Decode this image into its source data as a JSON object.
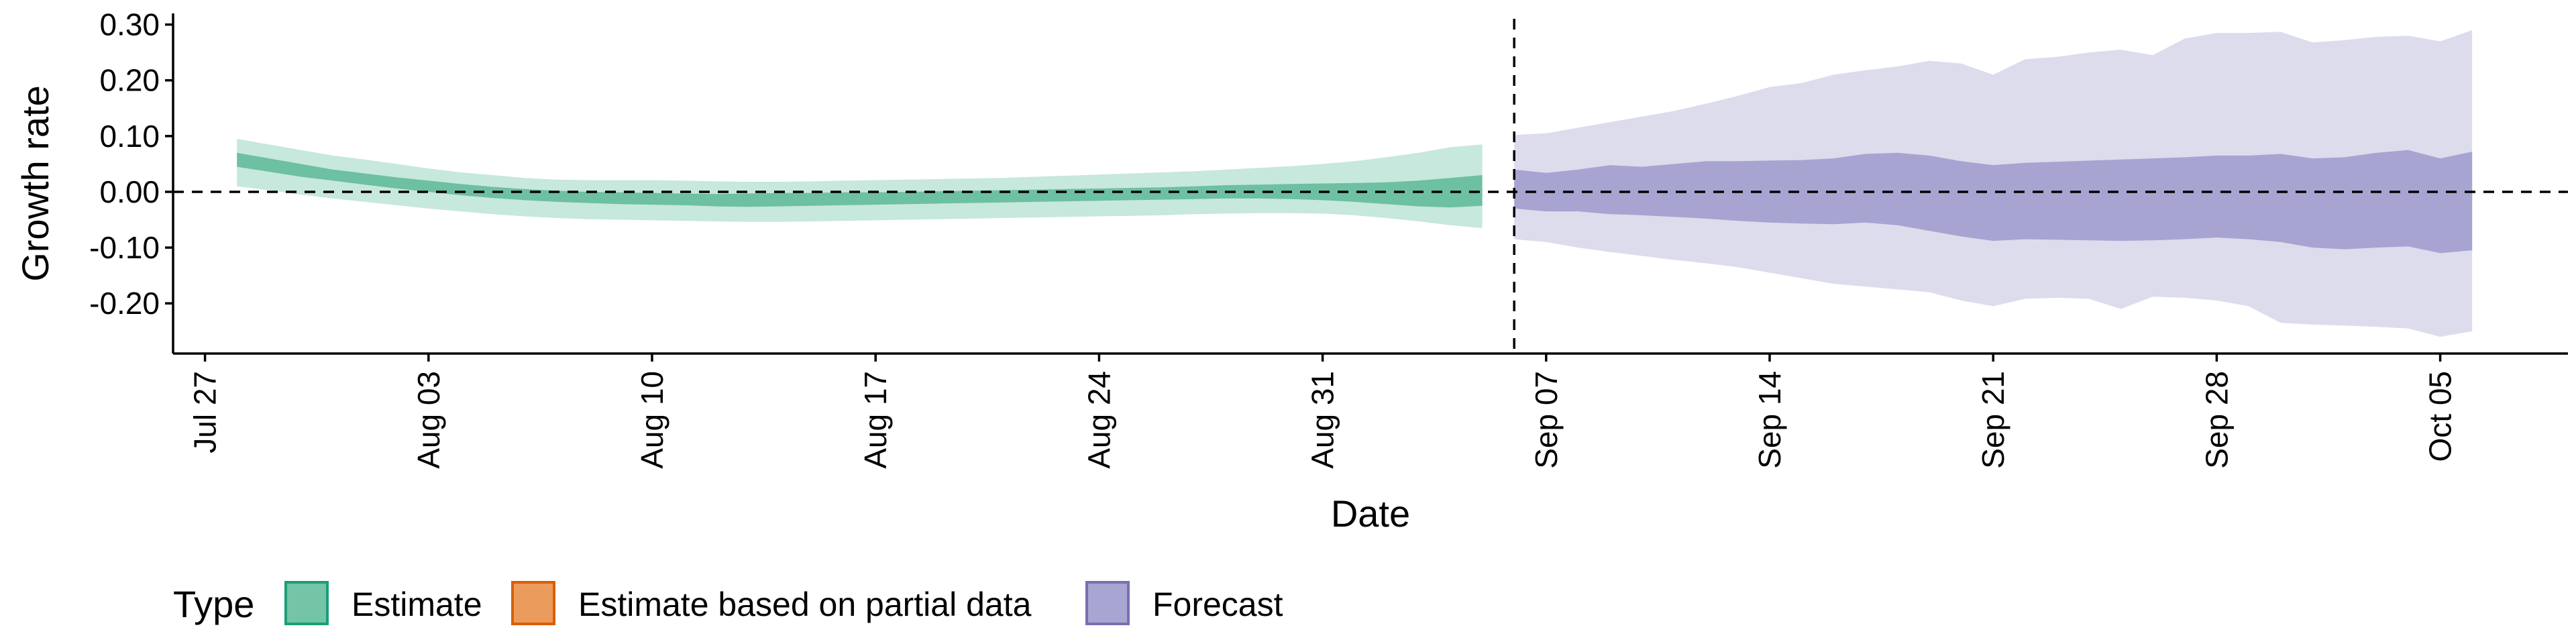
{
  "chart_data": {
    "type": "area",
    "title": "",
    "xlabel": "Date",
    "ylabel": "Growth rate",
    "ylim": [
      -0.29,
      0.32
    ],
    "y_ticks": [
      "0.30",
      "0.20",
      "0.10",
      "0.00",
      "-0.10",
      "-0.20"
    ],
    "y_tick_values": [
      0.3,
      0.2,
      0.1,
      0.0,
      -0.1,
      -0.2
    ],
    "x_tick_labels": [
      "Jul 27",
      "Aug 03",
      "Aug 10",
      "Aug 17",
      "Aug 24",
      "Aug 31",
      "Sep 07",
      "Sep 14",
      "Sep 21",
      "Sep 28",
      "Oct 05"
    ],
    "x_ticks": [
      "2020-07-27",
      "2020-08-03",
      "2020-08-10",
      "2020-08-17",
      "2020-08-24",
      "2020-08-31",
      "2020-09-07",
      "2020-09-14",
      "2020-09-21",
      "2020-09-28",
      "2020-10-05"
    ],
    "xlim": [
      "2020-07-26",
      "2020-10-09"
    ],
    "hline": 0.0,
    "vline": "2020-09-06",
    "grid": false,
    "legend": {
      "title": "Type",
      "position": "bottom",
      "entries": [
        {
          "label": "Estimate",
          "fill": "#74c4a8",
          "stroke": "#1b9e77"
        },
        {
          "label": "Estimate based on partial data",
          "fill": "#eb9c5c",
          "stroke": "#d95f02"
        },
        {
          "label": "Forecast",
          "fill": "#a8a5d2",
          "stroke": "#7570b3"
        }
      ]
    },
    "series": [
      {
        "name": "Estimate",
        "outer_color": "#c7e8dc",
        "inner_color": "#6dc0a2",
        "x": [
          "2020-07-28",
          "2020-07-29",
          "2020-07-30",
          "2020-07-31",
          "2020-08-01",
          "2020-08-02",
          "2020-08-03",
          "2020-08-04",
          "2020-08-05",
          "2020-08-06",
          "2020-08-07",
          "2020-08-08",
          "2020-08-09",
          "2020-08-10",
          "2020-08-11",
          "2020-08-12",
          "2020-08-13",
          "2020-08-14",
          "2020-08-15",
          "2020-08-16",
          "2020-08-17",
          "2020-08-18",
          "2020-08-19",
          "2020-08-20",
          "2020-08-21",
          "2020-08-22",
          "2020-08-23",
          "2020-08-24",
          "2020-08-25",
          "2020-08-26",
          "2020-08-27",
          "2020-08-28",
          "2020-08-29",
          "2020-08-30",
          "2020-08-31",
          "2020-09-01",
          "2020-09-02",
          "2020-09-03",
          "2020-09-04",
          "2020-09-05"
        ],
        "outer_upper": [
          0.095,
          0.085,
          0.075,
          0.065,
          0.058,
          0.05,
          0.042,
          0.035,
          0.03,
          0.025,
          0.022,
          0.021,
          0.021,
          0.021,
          0.02,
          0.019,
          0.018,
          0.018,
          0.019,
          0.02,
          0.021,
          0.022,
          0.023,
          0.024,
          0.025,
          0.027,
          0.029,
          0.031,
          0.033,
          0.035,
          0.037,
          0.04,
          0.043,
          0.046,
          0.05,
          0.055,
          0.062,
          0.07,
          0.08,
          0.085
        ],
        "inner_upper": [
          0.07,
          0.06,
          0.05,
          0.04,
          0.033,
          0.026,
          0.02,
          0.014,
          0.009,
          0.005,
          0.002,
          0.0,
          -0.001,
          -0.002,
          -0.003,
          -0.004,
          -0.003,
          -0.002,
          -0.002,
          -0.001,
          -0.001,
          0.0,
          0.001,
          0.002,
          0.003,
          0.004,
          0.005,
          0.006,
          0.007,
          0.008,
          0.01,
          0.012,
          0.013,
          0.014,
          0.015,
          0.016,
          0.017,
          0.02,
          0.025,
          0.03
        ],
        "inner_lower": [
          0.045,
          0.036,
          0.027,
          0.02,
          0.013,
          0.006,
          0.0,
          -0.006,
          -0.011,
          -0.015,
          -0.018,
          -0.02,
          -0.022,
          -0.023,
          -0.024,
          -0.026,
          -0.027,
          -0.026,
          -0.025,
          -0.024,
          -0.023,
          -0.022,
          -0.021,
          -0.02,
          -0.019,
          -0.018,
          -0.017,
          -0.016,
          -0.015,
          -0.014,
          -0.013,
          -0.012,
          -0.012,
          -0.013,
          -0.015,
          -0.018,
          -0.022,
          -0.026,
          -0.028,
          -0.025
        ],
        "outer_lower": [
          0.01,
          0.003,
          -0.005,
          -0.012,
          -0.018,
          -0.024,
          -0.03,
          -0.035,
          -0.04,
          -0.044,
          -0.047,
          -0.049,
          -0.05,
          -0.051,
          -0.052,
          -0.053,
          -0.054,
          -0.054,
          -0.053,
          -0.052,
          -0.051,
          -0.05,
          -0.049,
          -0.048,
          -0.047,
          -0.046,
          -0.045,
          -0.044,
          -0.043,
          -0.042,
          -0.04,
          -0.039,
          -0.038,
          -0.038,
          -0.039,
          -0.042,
          -0.047,
          -0.053,
          -0.06,
          -0.065
        ]
      },
      {
        "name": "Forecast",
        "outer_color": "#dddced",
        "inner_color": "#a8a4d1",
        "x": [
          "2020-09-06",
          "2020-09-07",
          "2020-09-08",
          "2020-09-09",
          "2020-09-10",
          "2020-09-11",
          "2020-09-12",
          "2020-09-13",
          "2020-09-14",
          "2020-09-15",
          "2020-09-16",
          "2020-09-17",
          "2020-09-18",
          "2020-09-19",
          "2020-09-20",
          "2020-09-21",
          "2020-09-22",
          "2020-09-23",
          "2020-09-24",
          "2020-09-25",
          "2020-09-26",
          "2020-09-27",
          "2020-09-28",
          "2020-09-29",
          "2020-09-30",
          "2020-10-01",
          "2020-10-02",
          "2020-10-03",
          "2020-10-04",
          "2020-10-05",
          "2020-10-06"
        ],
        "outer_upper": [
          0.102,
          0.105,
          0.115,
          0.125,
          0.135,
          0.145,
          0.158,
          0.172,
          0.188,
          0.195,
          0.21,
          0.218,
          0.225,
          0.235,
          0.23,
          0.21,
          0.238,
          0.242,
          0.25,
          0.255,
          0.245,
          0.275,
          0.285,
          0.285,
          0.287,
          0.268,
          0.272,
          0.278,
          0.28,
          0.27,
          0.29
        ],
        "inner_upper": [
          0.04,
          0.034,
          0.04,
          0.048,
          0.045,
          0.05,
          0.055,
          0.055,
          0.056,
          0.057,
          0.06,
          0.068,
          0.07,
          0.065,
          0.055,
          0.048,
          0.052,
          0.054,
          0.056,
          0.058,
          0.06,
          0.062,
          0.065,
          0.065,
          0.068,
          0.06,
          0.062,
          0.07,
          0.075,
          0.06,
          0.072
        ],
        "inner_lower": [
          -0.03,
          -0.035,
          -0.035,
          -0.04,
          -0.042,
          -0.045,
          -0.048,
          -0.052,
          -0.055,
          -0.057,
          -0.058,
          -0.055,
          -0.06,
          -0.07,
          -0.08,
          -0.088,
          -0.085,
          -0.086,
          -0.087,
          -0.088,
          -0.087,
          -0.085,
          -0.082,
          -0.085,
          -0.09,
          -0.1,
          -0.103,
          -0.1,
          -0.098,
          -0.11,
          -0.105
        ],
        "outer_lower": [
          -0.085,
          -0.09,
          -0.1,
          -0.108,
          -0.115,
          -0.122,
          -0.128,
          -0.135,
          -0.145,
          -0.155,
          -0.165,
          -0.17,
          -0.175,
          -0.18,
          -0.195,
          -0.205,
          -0.192,
          -0.19,
          -0.192,
          -0.21,
          -0.188,
          -0.19,
          -0.195,
          -0.205,
          -0.235,
          -0.238,
          -0.24,
          -0.242,
          -0.245,
          -0.26,
          -0.25
        ]
      }
    ]
  }
}
